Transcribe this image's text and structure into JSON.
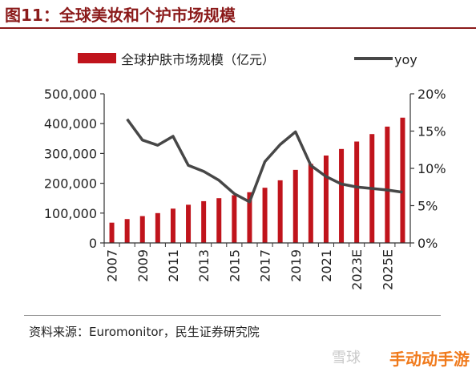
{
  "header": {
    "title": "图11：全球美妆和个护市场规模"
  },
  "footer": {
    "source": "资料来源：Euromonitor，民生证券研究院"
  },
  "watermark": {
    "logo": "雪球",
    "text": "手动动手游"
  },
  "colors": {
    "bar": "#c0141c",
    "line": "#474747",
    "title": "#8b1a1a"
  },
  "chart_data": {
    "type": "bar",
    "categories": [
      "2007",
      "2008",
      "2009",
      "2010",
      "2011",
      "2012",
      "2013",
      "2014",
      "2015",
      "2016",
      "2017",
      "2018",
      "2019",
      "2020",
      "2021",
      "2022",
      "2023E",
      "2024E",
      "2025E",
      "2026E"
    ],
    "x_tick_labels": [
      "2007",
      "2009",
      "2011",
      "2013",
      "2015",
      "2017",
      "2019",
      "2021",
      "2023E",
      "2025E"
    ],
    "series": [
      {
        "name": "全球护肤市场规模（亿元）",
        "type": "bar",
        "axis": "left",
        "values": [
          68000,
          80000,
          90000,
          100000,
          115000,
          128000,
          140000,
          150000,
          160000,
          170000,
          185000,
          210000,
          245000,
          265000,
          293000,
          315000,
          340000,
          365000,
          390000,
          420000
        ]
      },
      {
        "name": "yoy",
        "type": "line",
        "axis": "right",
        "values": [
          null,
          16.6,
          13.8,
          13.1,
          14.3,
          10.4,
          9.6,
          8.4,
          6.6,
          5.5,
          10.9,
          13.2,
          14.9,
          10.4,
          8.9,
          7.9,
          7.5,
          7.3,
          7.1,
          6.8
        ]
      }
    ],
    "y_left": {
      "ylim": [
        0,
        500000
      ],
      "ticks": [
        "0",
        "100,000",
        "200,000",
        "300,000",
        "400,000",
        "500,000"
      ]
    },
    "y_right": {
      "ylim": [
        0,
        20
      ],
      "ticks": [
        "0%",
        "5%",
        "10%",
        "15%",
        "20%"
      ]
    },
    "legend_position": "top",
    "grid": false
  }
}
